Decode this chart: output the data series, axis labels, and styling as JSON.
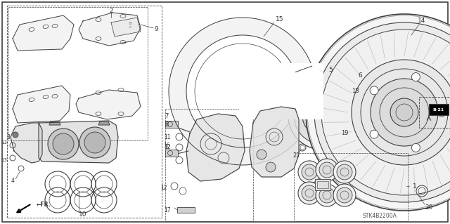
{
  "bg_color": "#ffffff",
  "line_color": "#404040",
  "figsize": [
    6.4,
    3.19
  ],
  "dpi": 100,
  "xlim": [
    0,
    640
  ],
  "ylim": [
    0,
    319
  ]
}
